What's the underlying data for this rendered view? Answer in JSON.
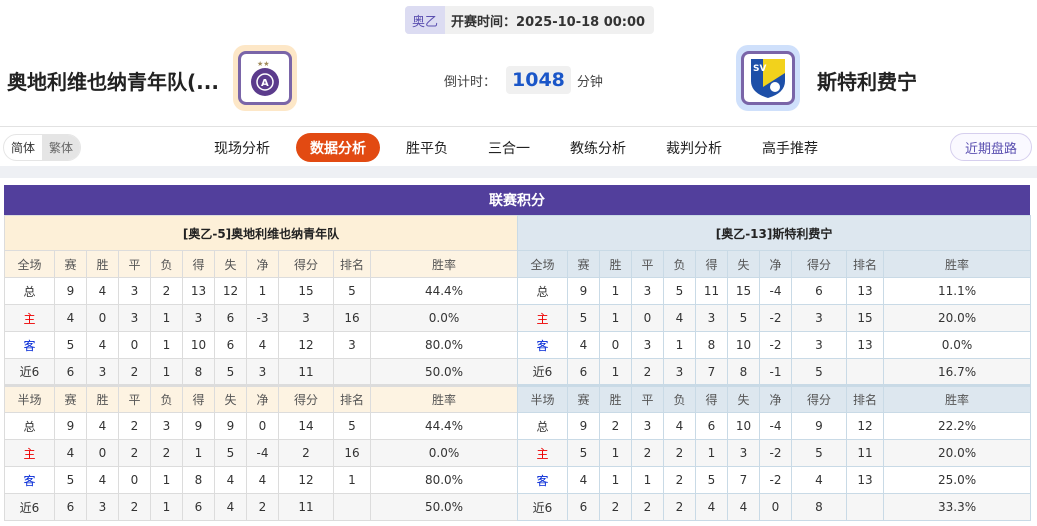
{
  "header": {
    "league": "奥乙",
    "kickoff_label": "开赛时间：",
    "kickoff": "2025-10-18 00:00",
    "home_team": "奥地利维也纳青年队(...",
    "away_team": "斯特利费宁",
    "countdown_label": "倒计时：",
    "countdown": "1048",
    "countdown_unit": "分钟",
    "home_logo_color": "#fde7c7",
    "away_logo_color": "#cfe0fb"
  },
  "lang": {
    "simplified": "简体",
    "traditional": "繁体"
  },
  "tabs": [
    {
      "label": "现场分析"
    },
    {
      "label": "数据分析",
      "active": true
    },
    {
      "label": "胜平负"
    },
    {
      "label": "三合一"
    },
    {
      "label": "教练分析"
    },
    {
      "label": "裁判分析"
    },
    {
      "label": "高手推荐"
    }
  ],
  "recent_button": "近期盘路",
  "standings": {
    "title": "联赛积分",
    "columns_full": [
      "全场",
      "赛",
      "胜",
      "平",
      "负",
      "得",
      "失",
      "净",
      "得分",
      "排名",
      "胜率"
    ],
    "columns_half": [
      "半场",
      "赛",
      "胜",
      "平",
      "负",
      "得",
      "失",
      "净",
      "得分",
      "排名",
      "胜率"
    ],
    "teams": [
      {
        "name": "[奥乙-5]奥地利维也纳青年队",
        "full": [
          [
            "总",
            "9",
            "4",
            "3",
            "2",
            "13",
            "12",
            "1",
            "15",
            "5",
            "44.4%"
          ],
          [
            "主",
            "4",
            "0",
            "3",
            "1",
            "3",
            "6",
            "-3",
            "3",
            "16",
            "0.0%"
          ],
          [
            "客",
            "5",
            "4",
            "0",
            "1",
            "10",
            "6",
            "4",
            "12",
            "3",
            "80.0%"
          ],
          [
            "近6",
            "6",
            "3",
            "2",
            "1",
            "8",
            "5",
            "3",
            "11",
            "",
            "50.0%"
          ]
        ],
        "half": [
          [
            "总",
            "9",
            "4",
            "2",
            "3",
            "9",
            "9",
            "0",
            "14",
            "5",
            "44.4%"
          ],
          [
            "主",
            "4",
            "0",
            "2",
            "2",
            "1",
            "5",
            "-4",
            "2",
            "16",
            "0.0%"
          ],
          [
            "客",
            "5",
            "4",
            "0",
            "1",
            "8",
            "4",
            "4",
            "12",
            "1",
            "80.0%"
          ],
          [
            "近6",
            "6",
            "3",
            "2",
            "1",
            "6",
            "4",
            "2",
            "11",
            "",
            "50.0%"
          ]
        ]
      },
      {
        "name": "[奥乙-13]斯特利费宁",
        "full": [
          [
            "总",
            "9",
            "1",
            "3",
            "5",
            "11",
            "15",
            "-4",
            "6",
            "13",
            "11.1%"
          ],
          [
            "主",
            "5",
            "1",
            "0",
            "4",
            "3",
            "5",
            "-2",
            "3",
            "15",
            "20.0%"
          ],
          [
            "客",
            "4",
            "0",
            "3",
            "1",
            "8",
            "10",
            "-2",
            "3",
            "13",
            "0.0%"
          ],
          [
            "近6",
            "6",
            "1",
            "2",
            "3",
            "7",
            "8",
            "-1",
            "5",
            "",
            "16.7%"
          ]
        ],
        "half": [
          [
            "总",
            "9",
            "2",
            "3",
            "4",
            "6",
            "10",
            "-4",
            "9",
            "12",
            "22.2%"
          ],
          [
            "主",
            "5",
            "1",
            "2",
            "2",
            "1",
            "3",
            "-2",
            "5",
            "11",
            "20.0%"
          ],
          [
            "客",
            "4",
            "1",
            "1",
            "2",
            "5",
            "7",
            "-2",
            "4",
            "13",
            "25.0%"
          ],
          [
            "近6",
            "6",
            "2",
            "2",
            "2",
            "4",
            "4",
            "0",
            "8",
            "",
            "33.3%"
          ]
        ]
      }
    ]
  }
}
